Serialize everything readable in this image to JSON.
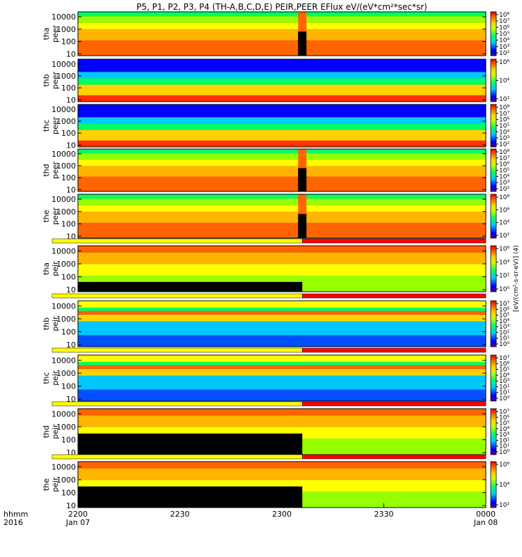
{
  "chart_data": {
    "type": "heatmap",
    "title": "P5, P1, P2, P3, P4 (TH-A,B,C,D,E) PEIR,PEER EFlux eV/(eV*cm²*sec*sr)",
    "x_axis": {
      "label_lines": [
        "hhmm",
        "2016"
      ],
      "ticks": [
        {
          "label": "2200",
          "sublabel": "Jan 07",
          "minute": 0
        },
        {
          "label": "2230",
          "sublabel": "",
          "minute": 30
        },
        {
          "label": "2300",
          "sublabel": "",
          "minute": 60
        },
        {
          "label": "2330",
          "sublabel": "",
          "minute": 90
        },
        {
          "label": "0000",
          "sublabel": "Jan 08",
          "minute": 120
        }
      ],
      "range_minutes": [
        0,
        120
      ]
    },
    "y_axis": {
      "scale": "log",
      "range_eV": [
        7,
        25000
      ],
      "ticks": [
        {
          "label": "10",
          "value": 10
        },
        {
          "label": "100",
          "value": 100
        },
        {
          "label": "1000",
          "value": 1000
        },
        {
          "label": "10000",
          "value": 10000
        }
      ]
    },
    "colorbar_unit_label": "[eV/(cm²-s-sr-eV)] (4)",
    "panels": [
      {
        "probe": "tha",
        "species": "peer",
        "ylabel_top": "tha",
        "ylabel_bottom": "peer",
        "colorbar_ticks": [
          "10⁸",
          "10⁷",
          "10⁶",
          "10⁵",
          "10⁴",
          "10³",
          "10²"
        ],
        "has_gap": true
      },
      {
        "probe": "thb",
        "species": "peer",
        "ylabel_top": "thb",
        "ylabel_bottom": "peer",
        "colorbar_ticks": [
          "10⁶",
          "10⁴",
          "10²"
        ],
        "has_gap": false
      },
      {
        "probe": "thc",
        "species": "peer",
        "ylabel_top": "thc",
        "ylabel_bottom": "peer",
        "colorbar_ticks": [
          "10⁸",
          "10⁷",
          "10⁶",
          "10⁵",
          "10⁴",
          "10³",
          "10²"
        ],
        "has_gap": false
      },
      {
        "probe": "thd",
        "species": "peer",
        "ylabel_top": "thd",
        "ylabel_bottom": "peer",
        "colorbar_ticks": [
          "10⁸",
          "10⁷",
          "10⁶",
          "10⁵",
          "10⁴",
          "10³",
          "10²"
        ],
        "has_gap": true
      },
      {
        "probe": "the",
        "species": "peer",
        "ylabel_top": "the",
        "ylabel_bottom": "peer",
        "colorbar_ticks": [
          "10⁸",
          "10⁶",
          "10⁴",
          "10²"
        ],
        "has_gap": true
      },
      {
        "probe": "tha",
        "species": "peir",
        "ylabel_top": "tha",
        "ylabel_bottom": "peir",
        "colorbar_ticks": [
          "10⁶",
          "10⁴",
          "10²",
          "10⁰"
        ],
        "has_gap": false
      },
      {
        "probe": "thb",
        "species": "peir",
        "ylabel_top": "thb",
        "ylabel_bottom": "peir",
        "colorbar_ticks": [
          "10⁷",
          "10⁶",
          "10⁵",
          "10⁴",
          "10³",
          "10²",
          "10¹",
          "10⁰"
        ],
        "has_gap": false
      },
      {
        "probe": "thc",
        "species": "peir",
        "ylabel_top": "thc",
        "ylabel_bottom": "peir",
        "colorbar_ticks": [
          "10⁷",
          "10⁶",
          "10⁵",
          "10⁴",
          "10³",
          "10²",
          "10¹",
          "10⁰"
        ],
        "has_gap": false
      },
      {
        "probe": "thd",
        "species": "peir",
        "ylabel_top": "thd",
        "ylabel_bottom": "peir",
        "colorbar_ticks": [
          "10⁷",
          "10⁶",
          "10⁵",
          "10⁴",
          "10³",
          "10²",
          "10¹",
          "10⁰"
        ],
        "has_gap": false
      },
      {
        "probe": "the",
        "species": "peir",
        "ylabel_top": "the",
        "ylabel_bottom": "peir",
        "colorbar_ticks": [
          "10⁶",
          "10⁴",
          "10²"
        ],
        "has_gap": false
      }
    ]
  },
  "colors": {
    "background": "#ffffff",
    "frame": "#000000",
    "bar_yellow": "#ffff00",
    "bar_red": "#ff0000"
  }
}
